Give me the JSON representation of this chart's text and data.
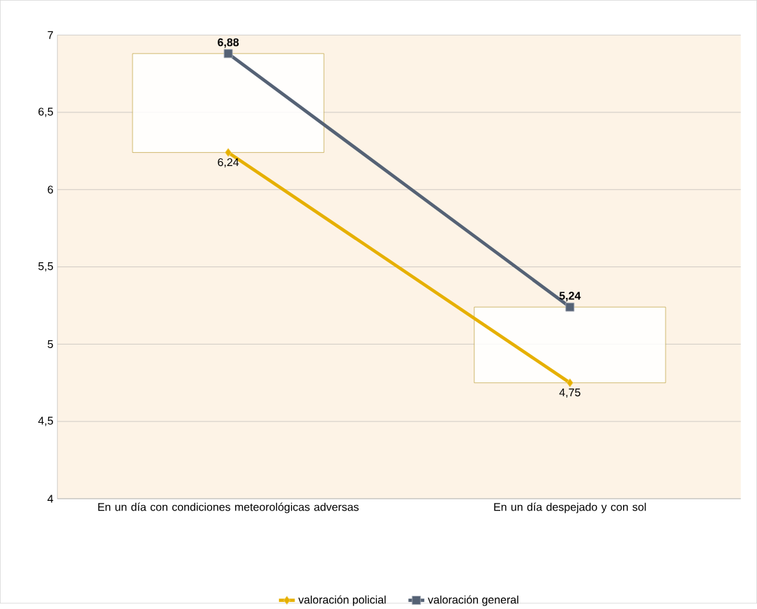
{
  "chart_data": {
    "type": "line",
    "categories": [
      "En un día con condiciones meteorológicas adversas",
      "En un día despejado y con sol"
    ],
    "series": [
      {
        "name": "valoración policial",
        "color": "#e6b000",
        "marker": "diamond",
        "values": [
          6.24,
          4.75
        ],
        "value_labels": [
          "6,24",
          "4,75"
        ]
      },
      {
        "name": "valoración general",
        "color": "#556275",
        "marker": "square",
        "values": [
          6.88,
          5.24
        ],
        "value_labels": [
          "6,88",
          "5,24"
        ]
      },
      {
        "type": "bar",
        "color": "#a88400",
        "base": [
          6.24,
          4.75
        ],
        "values": [
          0.64,
          0.49
        ]
      }
    ],
    "ylim": [
      4,
      7
    ],
    "yticks": [
      4,
      {
        "value": 4.5,
        "label": "4,5"
      },
      5,
      {
        "value": 5.5,
        "label": "5,5"
      },
      6,
      {
        "value": 6.5,
        "label": "6,5"
      },
      7
    ],
    "grid": "y",
    "legend": "bottom"
  }
}
